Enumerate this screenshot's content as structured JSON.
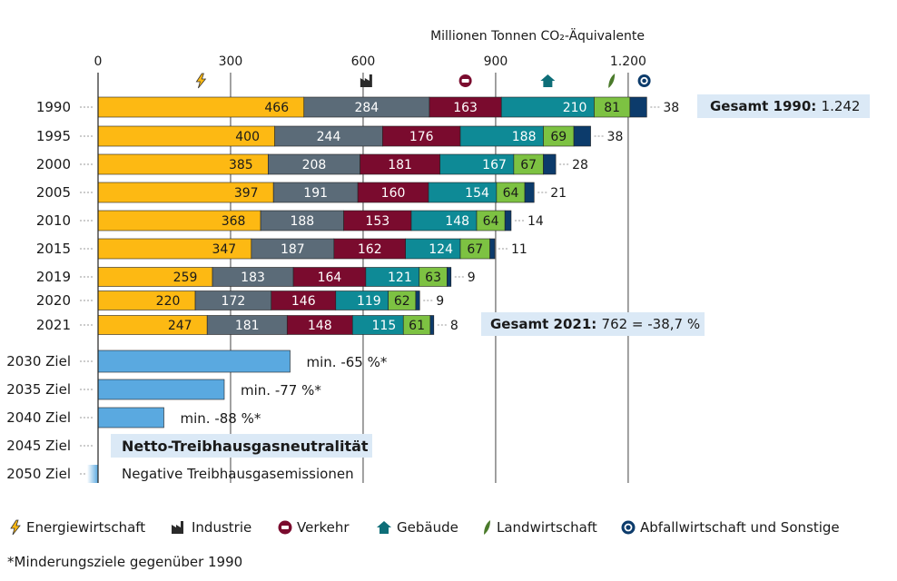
{
  "chart_data": {
    "type": "bar",
    "orientation": "horizontal",
    "stacked": true,
    "unit_label": "Millionen Tonnen CO₂-Äquivalente",
    "xlim": [
      0,
      1242
    ],
    "xticks": [
      0,
      300,
      600,
      900,
      1200
    ],
    "xtick_labels": [
      "0",
      "300",
      "600",
      "900",
      "1.200"
    ],
    "grid": "vertical",
    "categories": [
      "1990",
      "1995",
      "2000",
      "2005",
      "2010",
      "2015",
      "2019",
      "2020",
      "2021"
    ],
    "series": [
      {
        "name": "Energiewirtschaft",
        "color": "#fdb913",
        "icon": "lightning-icon",
        "values": [
          466,
          400,
          385,
          397,
          368,
          347,
          259,
          220,
          247
        ]
      },
      {
        "name": "Industrie",
        "color": "#5b6b78",
        "icon": "factory-icon",
        "values": [
          284,
          244,
          208,
          191,
          188,
          187,
          183,
          172,
          181
        ]
      },
      {
        "name": "Verkehr",
        "color": "#7a0b2e",
        "icon": "car-icon",
        "values": [
          163,
          176,
          181,
          160,
          153,
          162,
          164,
          146,
          148
        ]
      },
      {
        "name": "Gebäude",
        "color": "#0e8a96",
        "icon": "house-icon",
        "values": [
          210,
          188,
          167,
          154,
          148,
          124,
          121,
          119,
          115
        ]
      },
      {
        "name": "Landwirtschaft",
        "color": "#7dc242",
        "icon": "leaf-icon",
        "values": [
          81,
          69,
          67,
          64,
          64,
          67,
          63,
          62,
          61
        ]
      },
      {
        "name": "Abfallwirtschaft und Sonstige",
        "color": "#0c3b6b",
        "icon": "recycle-icon",
        "values": [
          38,
          38,
          28,
          21,
          14,
          11,
          9,
          9,
          8
        ]
      }
    ],
    "targets": [
      {
        "label": "2030 Ziel",
        "reduction": 0.65,
        "text": "min. -65 %*"
      },
      {
        "label": "2035 Ziel",
        "reduction": 0.77,
        "text": "min. -77 %*"
      },
      {
        "label": "2040 Ziel",
        "reduction": 0.88,
        "text": "min. -88 %*"
      },
      {
        "label": "2045 Ziel",
        "reduction": 1.0,
        "text": ""
      },
      {
        "label": "2050 Ziel",
        "reduction": 1.0,
        "text": ""
      }
    ],
    "target_color": "#5aa9e0",
    "annotations": {
      "total_1990_bold": "Gesamt 1990:",
      "total_1990_value": "1.242",
      "total_2021_bold": "Gesamt 2021:",
      "total_2021_value": "762 = -38,7 %",
      "neutrality": "Netto-Treibhausgasneutralität",
      "negative": "Negative Treibhausgasemissionen"
    },
    "footnote": "*Minderungsziele gegenüber 1990"
  }
}
